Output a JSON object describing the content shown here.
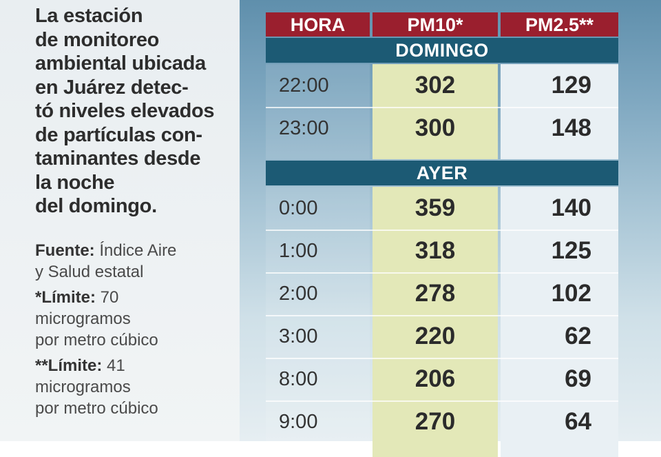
{
  "intro_lines": [
    "La estación",
    "de monitoreo",
    "ambiental ubicada",
    "en Juárez detec-",
    "tó niveles elevados",
    "de partículas con-",
    "taminantes desde",
    "la noche",
    "del domingo."
  ],
  "notes": {
    "fuente_label": "Fuente:",
    "fuente_line1": " Índice Aire",
    "fuente_line2": "y Salud estatal",
    "limit1_label": "*Límite:",
    "limit1_value": " 70",
    "limit1_line2": "microgramos",
    "limit1_line3": "por metro cúbico",
    "limit2_label": "**Límite:",
    "limit2_value": " 41",
    "limit2_line2": "microgramos",
    "limit2_line3": "por metro cúbico"
  },
  "table": {
    "headers": [
      "HORA",
      "PM10*",
      "PM2.5**"
    ],
    "sections": [
      {
        "label": "DOMINGO",
        "rows": [
          {
            "hora": "22:00",
            "pm10": "302",
            "pm25": "129"
          },
          {
            "hora": "23:00",
            "pm10": "300",
            "pm25": "148"
          }
        ]
      },
      {
        "label": "AYER",
        "rows": [
          {
            "hora": "0:00",
            "pm10": "359",
            "pm25": "140"
          },
          {
            "hora": "1:00",
            "pm10": "318",
            "pm25": "125"
          },
          {
            "hora": "2:00",
            "pm10": "278",
            "pm25": "102"
          },
          {
            "hora": "3:00",
            "pm10": "220",
            "pm25": "62"
          },
          {
            "hora": "8:00",
            "pm10": "206",
            "pm25": "69"
          },
          {
            "hora": "9:00",
            "pm10": "270",
            "pm25": "64"
          }
        ]
      }
    ]
  },
  "colors": {
    "header": "#9a1f2e",
    "section": "#1c5a74",
    "pm10_column": "#e3e8b8"
  }
}
